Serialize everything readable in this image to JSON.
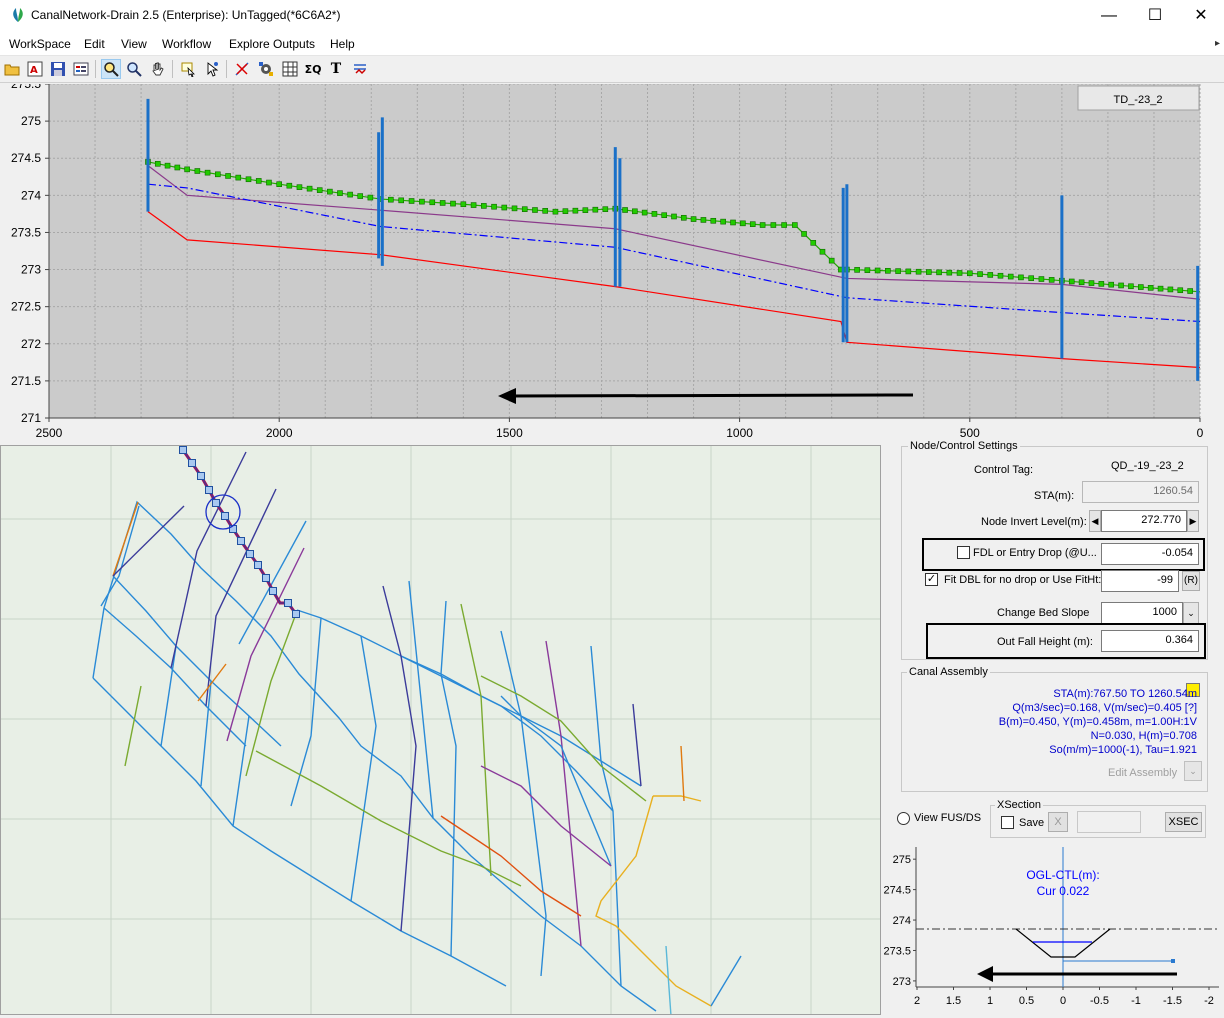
{
  "window": {
    "title": "CanalNetwork-Drain 2.5  (Enterprise): UnTagged(*6C6A2*)",
    "minimize": "—",
    "maximize": "☐",
    "close": "✕"
  },
  "menu": [
    "WorkSpace",
    "Edit",
    "View",
    "Workflow",
    "Explore Outputs",
    "Help"
  ],
  "toolbar_icons": [
    "open-folder-icon",
    "text-style-icon",
    "save-icon",
    "properties-icon",
    "zoom-box-icon",
    "zoom-icon",
    "pan-hand-icon",
    "select-node-icon",
    "select-arrow-icon",
    "cut-link-icon",
    "settings-network-icon",
    "grid-icon",
    "sigma-q-icon",
    "text-tool-icon",
    "flow-icon"
  ],
  "profile": {
    "tag_box": "TD_-23_2",
    "y_ticks": [
      "271",
      "271.5",
      "272",
      "272.5",
      "273",
      "273.5",
      "274",
      "274.5",
      "275",
      "275.5"
    ],
    "x_ticks": [
      "2500",
      "2000",
      "1500",
      "1000",
      "500",
      "0"
    ]
  },
  "chart_data": {
    "type": "line",
    "x_reversed": true,
    "xlim": [
      0,
      2500
    ],
    "ylim": [
      271,
      275.5
    ],
    "series": [
      {
        "color": "#22aa00",
        "style": "dotted-squares",
        "x": [
          2285,
          2200,
          2000,
          1780,
          1600,
          1400,
          1270,
          1100,
          950,
          880,
          780,
          767,
          500,
          300,
          0
        ],
        "values": [
          274.45,
          274.35,
          274.15,
          273.95,
          273.88,
          273.78,
          273.82,
          273.68,
          273.6,
          273.6,
          273.0,
          273.0,
          272.95,
          272.85,
          272.7
        ]
      },
      {
        "color": "#8b3a8b",
        "style": "solid",
        "x": [
          2285,
          2200,
          1780,
          1270,
          767,
          300,
          0
        ],
        "values": [
          274.4,
          274.0,
          273.8,
          273.55,
          272.88,
          272.8,
          272.6
        ]
      },
      {
        "color": "#0000ff",
        "style": "dashdot",
        "x": [
          2285,
          2200,
          1780,
          1270,
          767,
          300,
          0
        ],
        "values": [
          274.15,
          274.1,
          273.58,
          273.3,
          272.62,
          272.42,
          272.3
        ]
      },
      {
        "color": "#ff0000",
        "style": "solid",
        "x": [
          2285,
          2200,
          1780,
          1270,
          780,
          767,
          300,
          0
        ],
        "values": [
          273.78,
          273.4,
          273.2,
          272.77,
          272.3,
          272.02,
          271.8,
          271.68
        ]
      }
    ],
    "verticals": [
      {
        "x": 2285,
        "y1": 273.78,
        "y2": 275.3
      },
      {
        "x": 1784,
        "y1": 273.15,
        "y2": 274.85
      },
      {
        "x": 1776,
        "y1": 273.05,
        "y2": 275.05
      },
      {
        "x": 1270,
        "y1": 272.77,
        "y2": 274.65
      },
      {
        "x": 1260,
        "y1": 272.77,
        "y2": 274.5
      },
      {
        "x": 775,
        "y1": 272.02,
        "y2": 274.1
      },
      {
        "x": 767,
        "y1": 272.02,
        "y2": 274.15
      },
      {
        "x": 300,
        "y1": 271.8,
        "y2": 274.0
      },
      {
        "x": 5,
        "y1": 271.5,
        "y2": 273.05
      }
    ]
  },
  "settings": {
    "legend": "Node/Control Settings",
    "control_tag_label": "Control Tag:",
    "control_tag_value": "QD_-19_-23_2",
    "sta_label": "STA(m):",
    "sta_value": "1260.54",
    "invert_label": "Node Invert Level(m):",
    "invert_value": "272.770",
    "fdl_label": "FDL or Entry Drop (@U...",
    "fdl_value": "-0.054",
    "fit_label": "Fit DBL for no drop or Use FitHt:",
    "fit_value": "-99",
    "r_button": "(R)",
    "bed_slope_label": "Change Bed Slope",
    "bed_slope_value": "1000",
    "outfall_label": "Out Fall Height (m):",
    "outfall_value": "0.364"
  },
  "assembly": {
    "legend": "Canal Assembly",
    "lines": [
      "STA(m):767.50 TO 1260.54m",
      "Q(m3/sec)=0.168, V(m/sec)=0.405 [?]",
      "B(m)=0.450,  Y(m)=0.458m, m=1.00H:1V",
      "N=0.030, H(m)=0.708",
      "So(m/m)=1000(-1),  Tau=1.921"
    ],
    "edit_label": "Edit Assembly"
  },
  "view_fus_label": "View FUS/DS",
  "xsection": {
    "legend": "XSection",
    "save_label": "Save",
    "x_button": "X",
    "xsec_button": "XSEC"
  },
  "xchart": {
    "title": "OGL-CTL(m):",
    "subtitle": "Cur 0.022",
    "y_ticks": [
      "273",
      "273.5",
      "274",
      "274.5",
      "275"
    ],
    "x_ticks": [
      "2",
      "1.5",
      "1",
      "0.5",
      "0",
      "-0.5",
      "-1",
      "-1.5",
      "-2"
    ]
  }
}
